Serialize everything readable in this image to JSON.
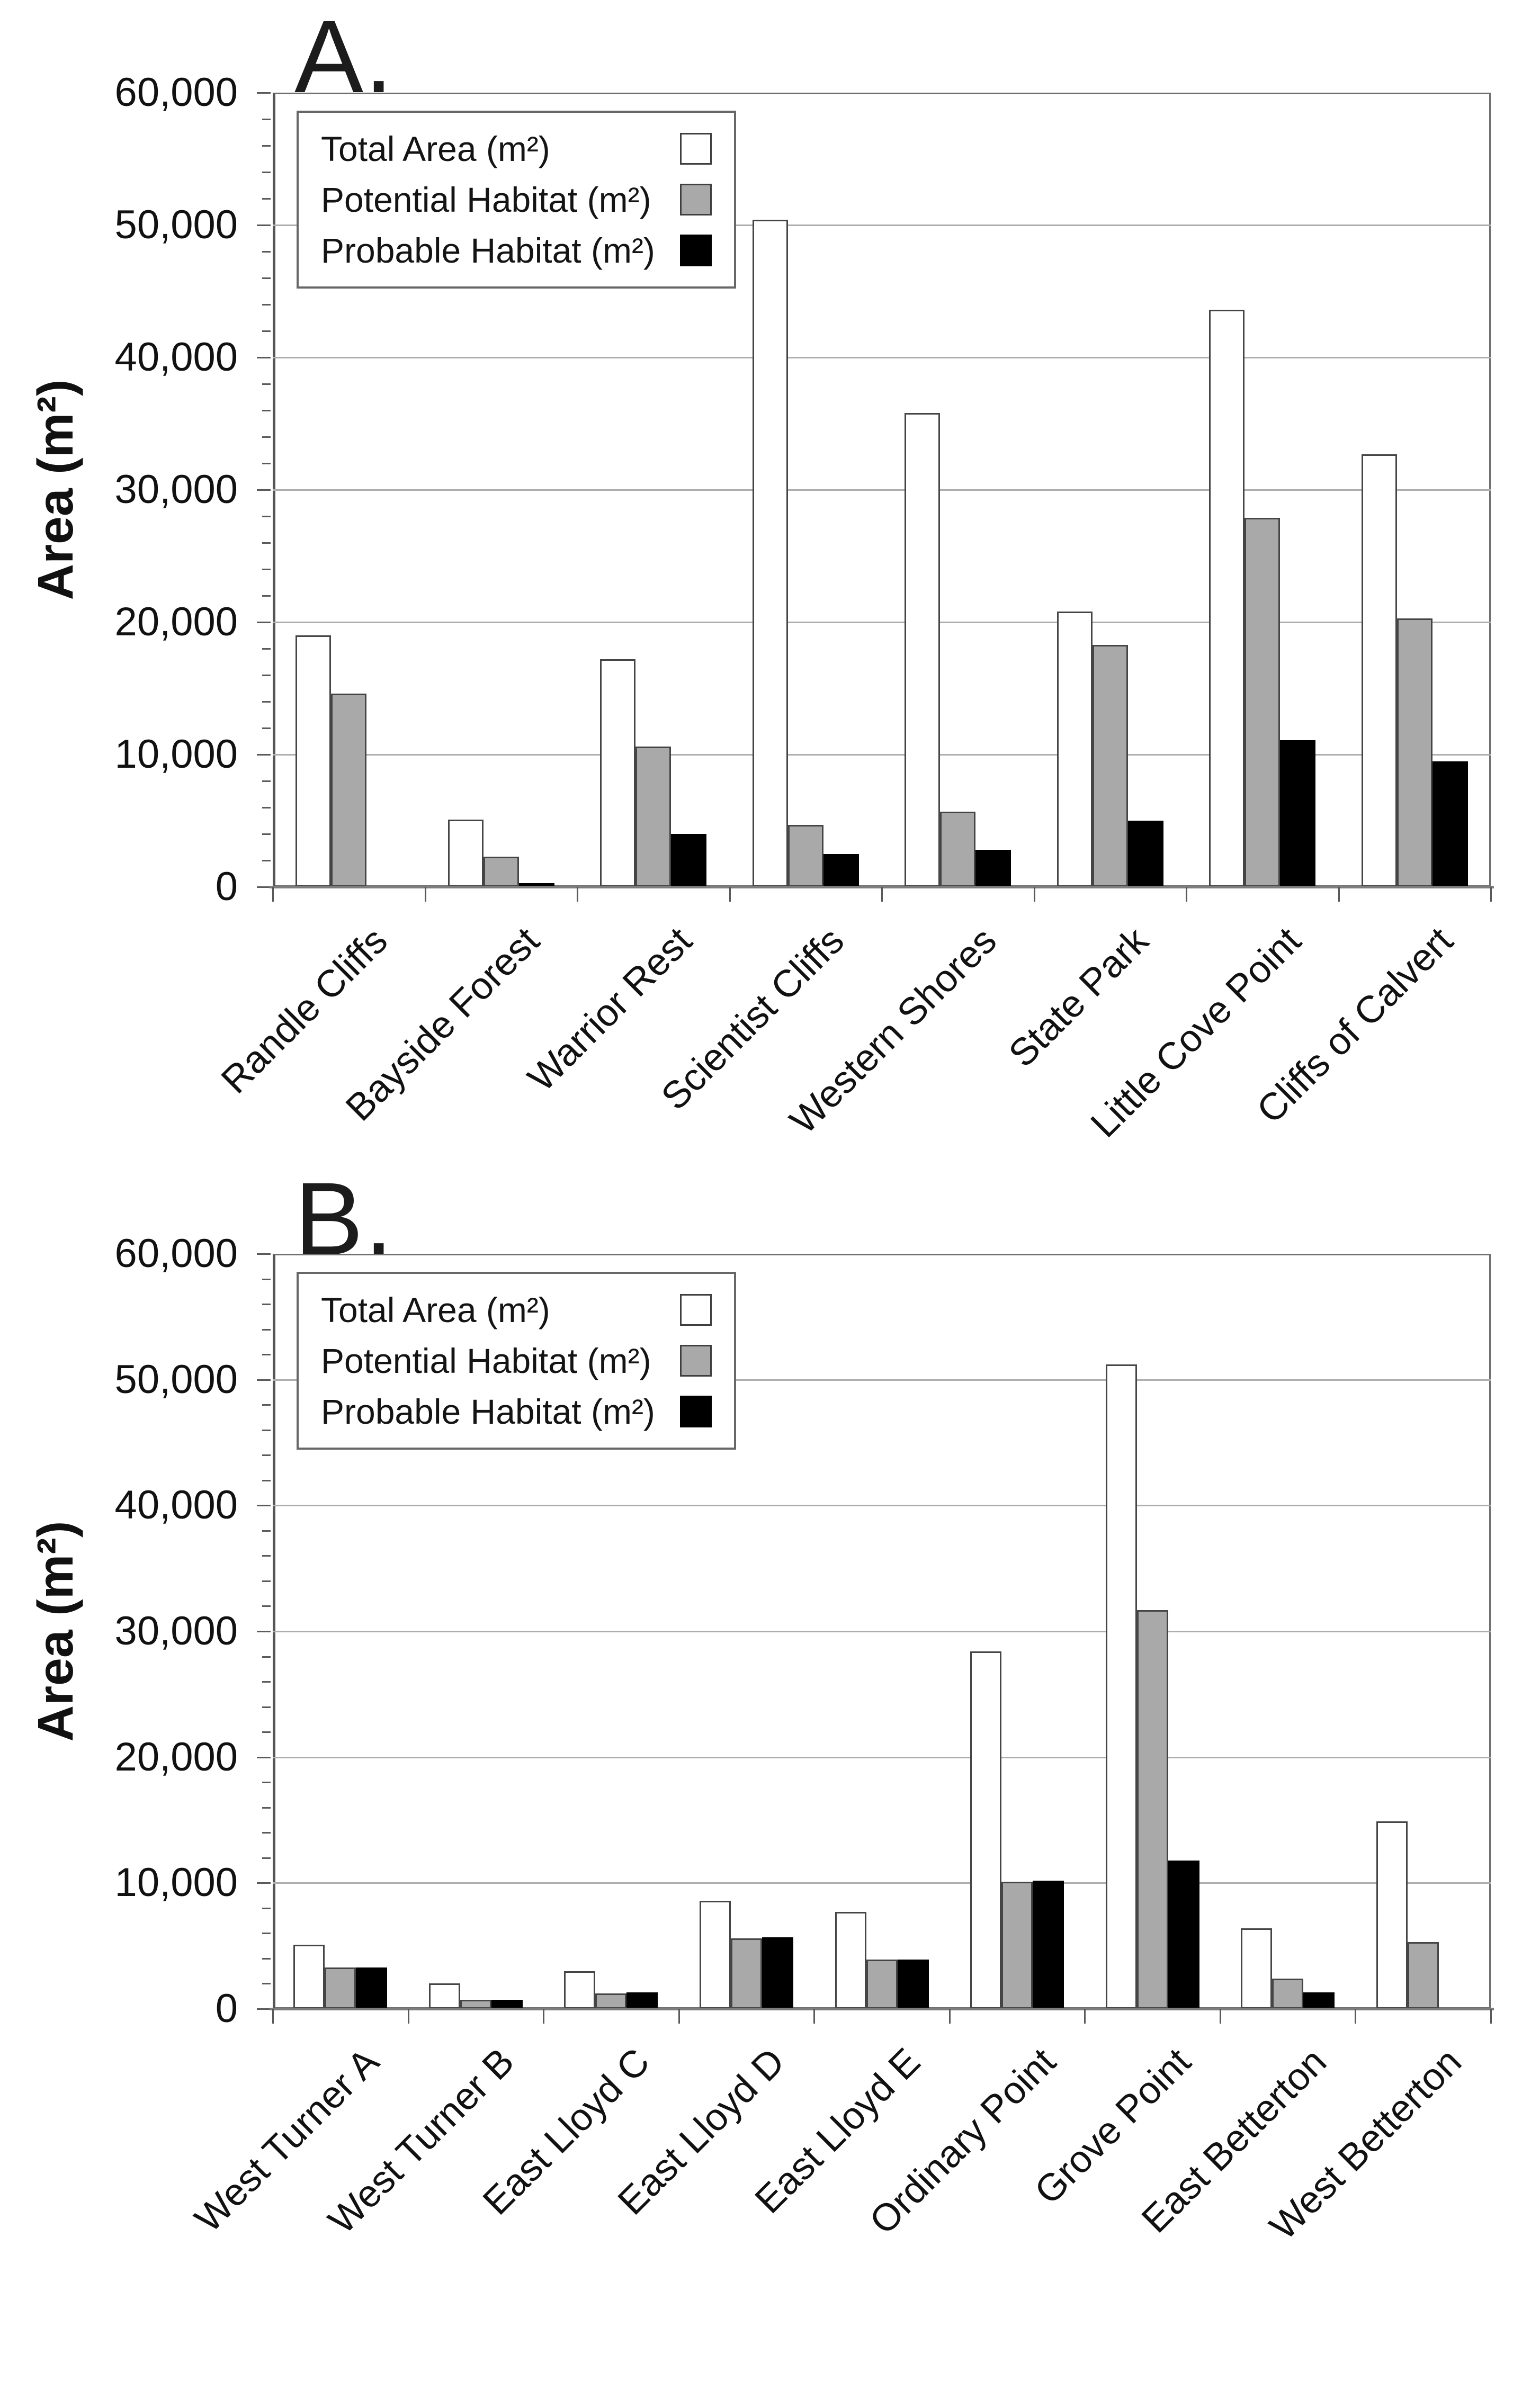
{
  "figure": {
    "background": "#ffffff"
  },
  "legend": {
    "items": [
      {
        "label": "Total Area (m²)",
        "color": "#ffffff"
      },
      {
        "label": "Potential Habitat (m²)",
        "color": "#a9a9a9"
      },
      {
        "label": "Probable Habitat (m²)",
        "color": "#000000"
      }
    ]
  },
  "colors": {
    "total_fill": "#ffffff",
    "potential_fill": "#a9a9a9",
    "probable_fill": "#000000",
    "bar_border": "#454545",
    "gridline": "#aeaeae",
    "axis": "#5a5a5a",
    "baseline": "#7d7d7d",
    "text": "#111111",
    "legend_border": "#676767"
  },
  "chart_data": [
    {
      "type": "bar",
      "panel_label": "A.",
      "title": "",
      "xlabel": "",
      "ylabel": "Area (m²)",
      "ylim": [
        0,
        60000
      ],
      "ytick_interval": 10000,
      "yminor_interval": 2000,
      "ytick_labels": [
        "0",
        "10,000",
        "20,000",
        "30,000",
        "40,000",
        "50,000",
        "60,000"
      ],
      "grid": true,
      "legend_position": "top-left",
      "categories": [
        "Randle Cliffs",
        "Bayside Forest",
        "Warrior Rest",
        "Scientist Cliffs",
        "Western Shores",
        "State Park",
        "Little Cove Point",
        "Cliffs of Calvert"
      ],
      "series": [
        {
          "name": "Total Area (m²)",
          "values": [
            19000,
            5100,
            17200,
            50400,
            35800,
            20800,
            43600,
            32700
          ]
        },
        {
          "name": "Potential Habitat (m²)",
          "values": [
            14600,
            2300,
            10600,
            4700,
            5700,
            18300,
            27900,
            20300
          ]
        },
        {
          "name": "Probable Habitat (m²)",
          "values": [
            0,
            300,
            4000,
            2500,
            2800,
            5000,
            11100,
            9500
          ]
        }
      ]
    },
    {
      "type": "bar",
      "panel_label": "B.",
      "title": "",
      "xlabel": "",
      "ylabel": "Area (m²)",
      "ylim": [
        0,
        60000
      ],
      "ytick_interval": 10000,
      "yminor_interval": 2000,
      "ytick_labels": [
        "0",
        "10,000",
        "20,000",
        "30,000",
        "40,000",
        "50,000",
        "60,000"
      ],
      "grid": true,
      "legend_position": "top-left",
      "categories": [
        "West Turner A",
        "West Turner B",
        "East Lloyd C",
        "East Lloyd D",
        "East Lloyd E",
        "Ordinary Point",
        "Grove Point",
        "East Betterton",
        "West Betterton"
      ],
      "series": [
        {
          "name": "Total Area (m²)",
          "values": [
            5100,
            2000,
            3000,
            8600,
            7700,
            28400,
            51200,
            6400,
            14900
          ]
        },
        {
          "name": "Potential Habitat (m²)",
          "values": [
            3300,
            700,
            1200,
            5600,
            3900,
            10100,
            31700,
            2400,
            5300
          ]
        },
        {
          "name": "Probable Habitat (m²)",
          "values": [
            3300,
            700,
            1300,
            5700,
            3900,
            10200,
            11800,
            1300,
            0
          ]
        }
      ]
    }
  ]
}
